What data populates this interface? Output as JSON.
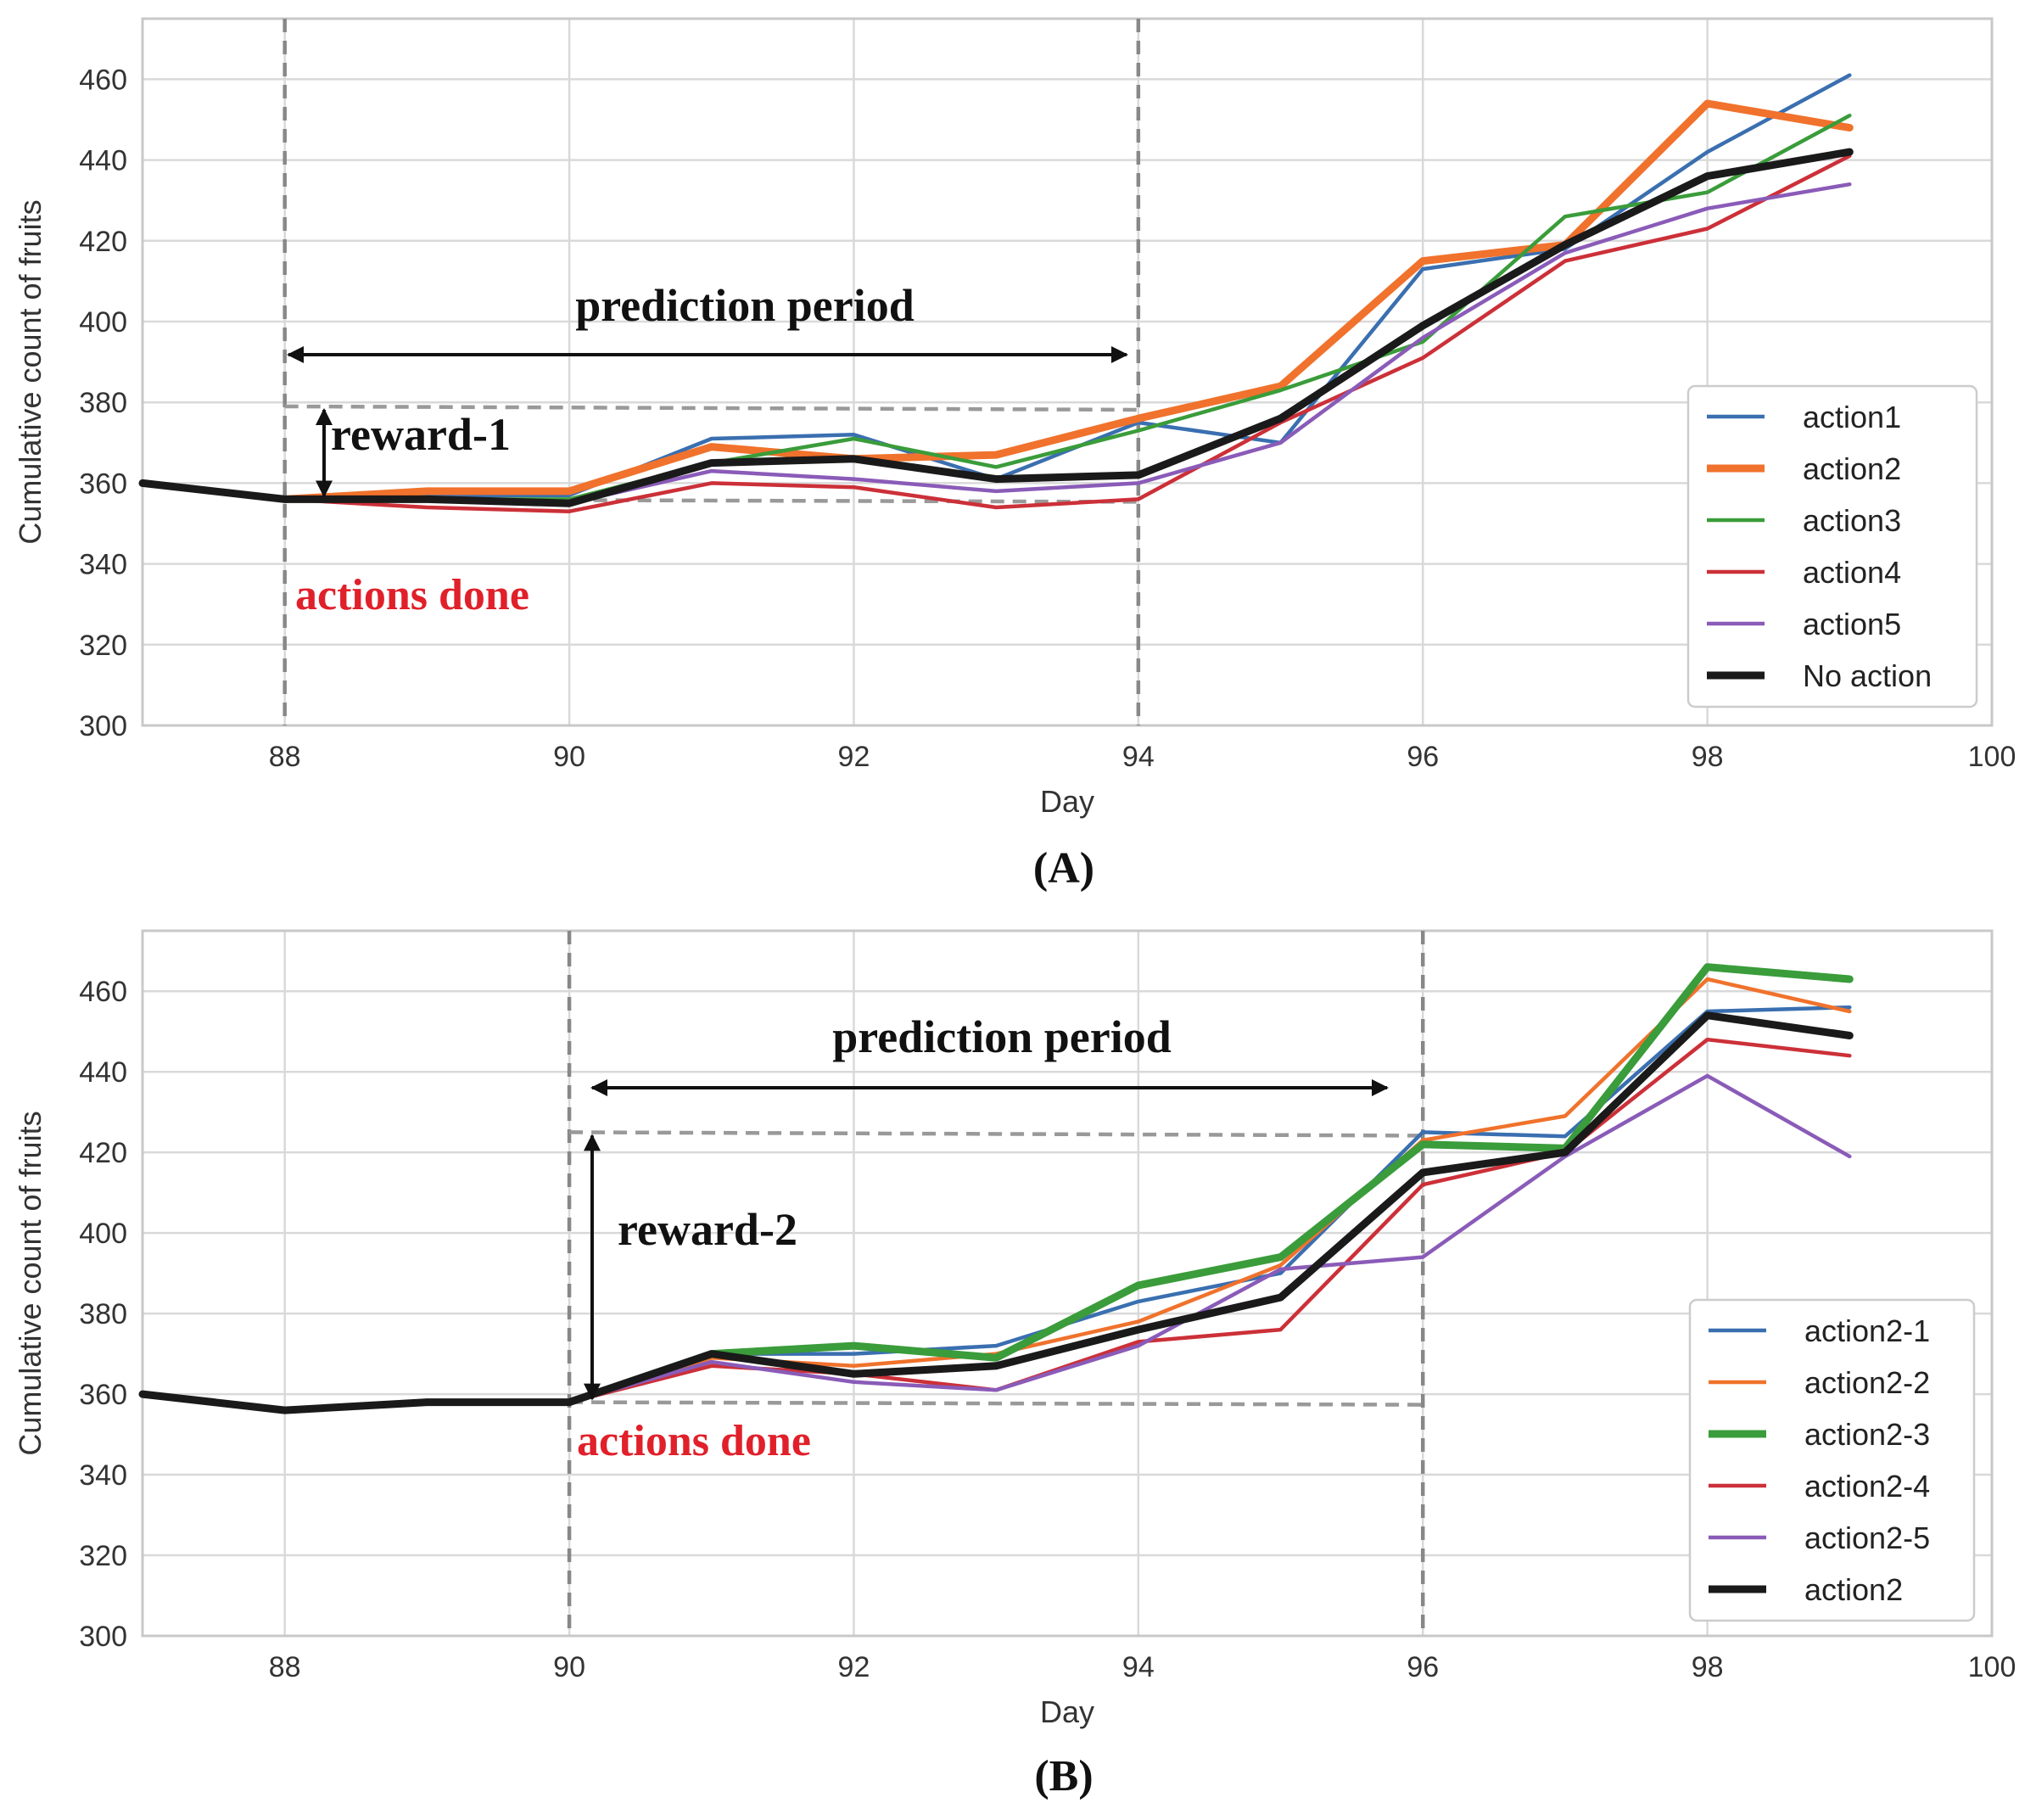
{
  "colors": {
    "action1": "#3a6fb0",
    "action2": "#f0722c",
    "action3": "#3a9c3a",
    "action4": "#cc3038",
    "action5": "#8a5bb8",
    "no_action": "#1a1a1a",
    "annotation_red": "#e0202a",
    "guide_gray": "#8c8c8c"
  },
  "chart_data": [
    {
      "type": "line",
      "panel_label": "(A)",
      "xlabel": "Day",
      "ylabel": "Cumulative count of fruits",
      "xlim": [
        87,
        100
      ],
      "ylim": [
        300,
        475
      ],
      "x_ticks": [
        88,
        90,
        92,
        94,
        96,
        98,
        100
      ],
      "y_ticks": [
        300,
        320,
        340,
        360,
        380,
        400,
        420,
        440,
        460
      ],
      "grid": true,
      "legend_position": "bottom-right",
      "annotations": {
        "prediction_period": "prediction period",
        "reward": "reward-1",
        "actions_done": "actions done"
      },
      "guides": {
        "action_day": 88,
        "prediction_end_day": 94,
        "reward_top": 379,
        "reward_bottom": 356
      },
      "series": [
        {
          "name": "action1",
          "color": "#3a6fb0",
          "width": 4.5,
          "x": [
            88,
            89,
            90,
            91,
            92,
            93,
            94,
            95,
            96,
            97,
            98,
            99
          ],
          "y": [
            356,
            357,
            357,
            371,
            372,
            361,
            375,
            370,
            413,
            418,
            442,
            461
          ]
        },
        {
          "name": "action2",
          "color": "#f0722c",
          "width": 9,
          "x": [
            88,
            89,
            90,
            91,
            92,
            93,
            94,
            95,
            96,
            97,
            98,
            99
          ],
          "y": [
            356,
            358,
            358,
            369,
            366,
            367,
            376,
            384,
            415,
            419,
            454,
            448
          ]
        },
        {
          "name": "action3",
          "color": "#3a9c3a",
          "width": 4.5,
          "x": [
            88,
            89,
            90,
            91,
            92,
            93,
            94,
            95,
            96,
            97,
            98,
            99
          ],
          "y": [
            356,
            356,
            356,
            365,
            371,
            364,
            373,
            383,
            395,
            426,
            432,
            451
          ]
        },
        {
          "name": "action4",
          "color": "#cc3038",
          "width": 4.5,
          "x": [
            88,
            89,
            90,
            91,
            92,
            93,
            94,
            95,
            96,
            97,
            98,
            99
          ],
          "y": [
            356,
            354,
            353,
            360,
            359,
            354,
            356,
            375,
            391,
            415,
            423,
            441
          ]
        },
        {
          "name": "action5",
          "color": "#8a5bb8",
          "width": 4.5,
          "x": [
            88,
            89,
            90,
            91,
            92,
            93,
            94,
            95,
            96,
            97,
            98,
            99
          ],
          "y": [
            356,
            356,
            355,
            363,
            361,
            358,
            360,
            370,
            396,
            417,
            428,
            434
          ]
        },
        {
          "name": "No action",
          "color": "#1a1a1a",
          "width": 9,
          "x": [
            87,
            88,
            89,
            90,
            91,
            92,
            93,
            94,
            95,
            96,
            97,
            98,
            99
          ],
          "y": [
            360,
            356,
            356,
            355,
            365,
            366,
            361,
            362,
            376,
            399,
            419,
            436,
            442
          ]
        }
      ]
    },
    {
      "type": "line",
      "panel_label": "(B)",
      "xlabel": "Day",
      "ylabel": "Cumulative count of fruits",
      "xlim": [
        87,
        100
      ],
      "ylim": [
        300,
        475
      ],
      "x_ticks": [
        88,
        90,
        92,
        94,
        96,
        98,
        100
      ],
      "y_ticks": [
        300,
        320,
        340,
        360,
        380,
        400,
        420,
        440,
        460
      ],
      "grid": true,
      "legend_position": "bottom-right",
      "annotations": {
        "prediction_period": "prediction period",
        "reward": "reward-2",
        "actions_done": "actions done"
      },
      "guides": {
        "action_day": 90,
        "prediction_end_day": 96,
        "reward_top": 425,
        "reward_bottom": 358
      },
      "series": [
        {
          "name": "action2-1",
          "color": "#3a6fb0",
          "width": 4.5,
          "x": [
            90,
            91,
            92,
            93,
            94,
            95,
            96,
            97,
            98,
            99
          ],
          "y": [
            358,
            370,
            370,
            372,
            383,
            390,
            425,
            424,
            455,
            456
          ]
        },
        {
          "name": "action2-2",
          "color": "#f0722c",
          "width": 4.5,
          "x": [
            90,
            91,
            92,
            93,
            94,
            95,
            96,
            97,
            98,
            99
          ],
          "y": [
            358,
            369,
            367,
            370,
            378,
            392,
            423,
            429,
            463,
            455
          ]
        },
        {
          "name": "action2-3",
          "color": "#3a9c3a",
          "width": 9,
          "x": [
            90,
            91,
            92,
            93,
            94,
            95,
            96,
            97,
            98,
            99
          ],
          "y": [
            358,
            370,
            372,
            369,
            387,
            394,
            422,
            421,
            466,
            463
          ]
        },
        {
          "name": "action2-4",
          "color": "#cc3038",
          "width": 4.5,
          "x": [
            90,
            91,
            92,
            93,
            94,
            95,
            96,
            97,
            98,
            99
          ],
          "y": [
            358,
            367,
            365,
            361,
            373,
            376,
            412,
            420,
            448,
            444
          ]
        },
        {
          "name": "action2-5",
          "color": "#8a5bb8",
          "width": 4.5,
          "x": [
            90,
            91,
            92,
            93,
            94,
            95,
            96,
            97,
            98,
            99
          ],
          "y": [
            358,
            368,
            363,
            361,
            372,
            391,
            394,
            419,
            439,
            419
          ]
        },
        {
          "name": "action2",
          "color": "#1a1a1a",
          "width": 9,
          "x": [
            87,
            88,
            89,
            90,
            91,
            92,
            93,
            94,
            95,
            96,
            97,
            98,
            99
          ],
          "y": [
            360,
            356,
            358,
            358,
            370,
            365,
            367,
            376,
            384,
            415,
            420,
            454,
            449
          ]
        }
      ]
    }
  ]
}
